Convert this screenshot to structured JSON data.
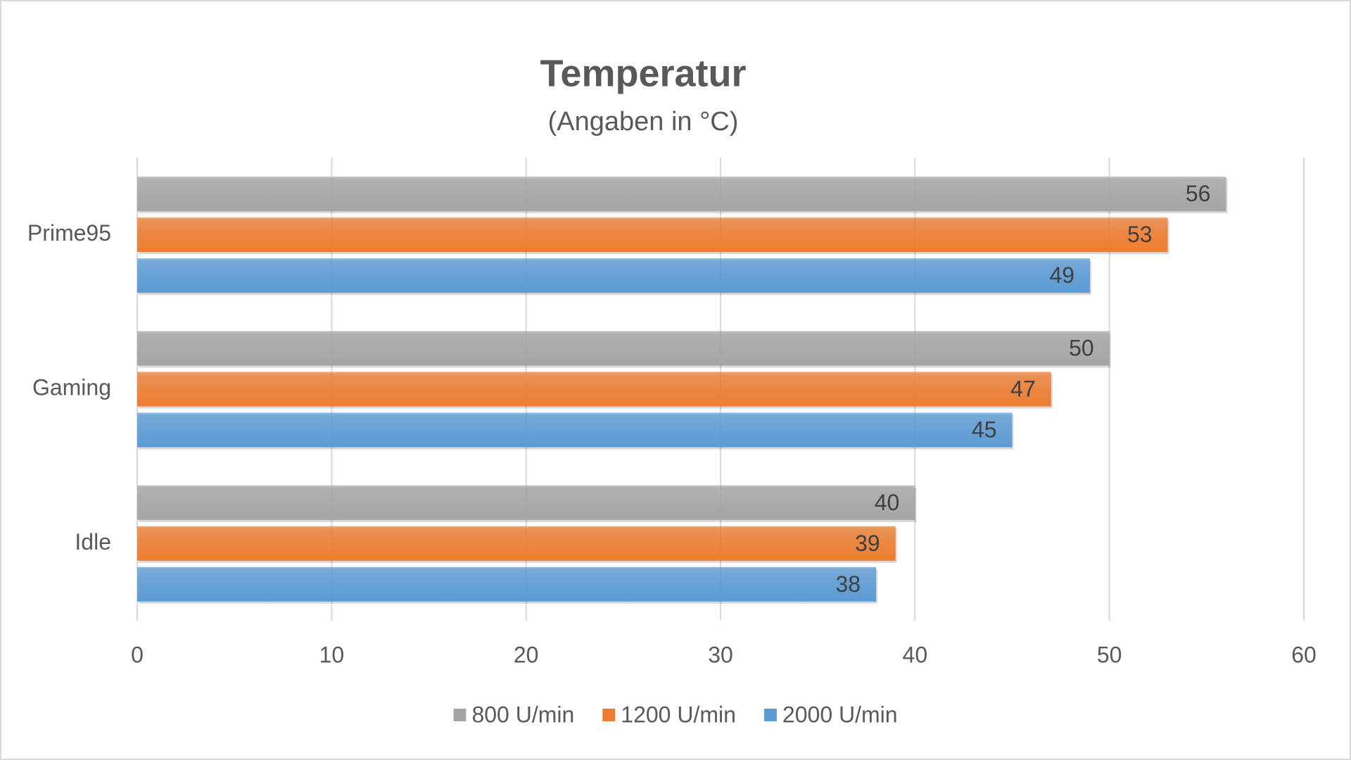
{
  "chart_data": {
    "type": "bar",
    "orientation": "horizontal",
    "title": "Temperatur",
    "subtitle": "(Angaben in °C)",
    "categories": [
      "Prime95",
      "Gaming",
      "Idle"
    ],
    "series": [
      {
        "name": "800 U/min",
        "color": "#a5a5a5",
        "values": [
          56,
          50,
          40
        ]
      },
      {
        "name": "1200 U/min",
        "color": "#ed7d31",
        "values": [
          53,
          47,
          39
        ]
      },
      {
        "name": "2000 U/min",
        "color": "#5b9bd5",
        "values": [
          49,
          45,
          38
        ]
      }
    ],
    "xlim": [
      0,
      60
    ],
    "xticks": [
      0,
      10,
      20,
      30,
      40,
      50,
      60
    ],
    "grid": true,
    "legend": "bottom"
  }
}
